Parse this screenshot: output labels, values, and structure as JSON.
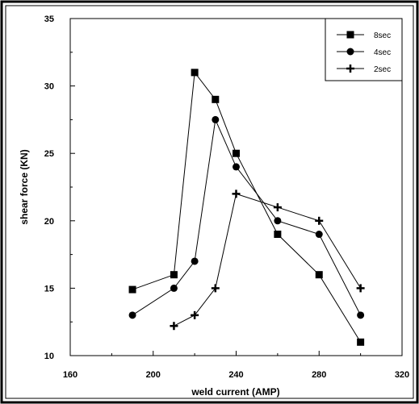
{
  "chart_data": {
    "type": "line",
    "title": "",
    "xlabel": "weld current (AMP)",
    "ylabel": "shear force (KN)",
    "xlim": [
      160,
      320
    ],
    "ylim": [
      10,
      35
    ],
    "xticks": [
      160,
      200,
      240,
      280,
      320
    ],
    "yticks": [
      10,
      15,
      20,
      25,
      30,
      35
    ],
    "grid": false,
    "legend_position": "top-right",
    "series": [
      {
        "name": "8sec",
        "marker": "square",
        "x": [
          190,
          210,
          220,
          230,
          240,
          260,
          280,
          300
        ],
        "y": [
          14.9,
          16,
          31,
          29,
          25,
          19,
          16,
          11
        ]
      },
      {
        "name": "4sec",
        "marker": "circle",
        "x": [
          190,
          210,
          220,
          230,
          240,
          260,
          280,
          300
        ],
        "y": [
          13,
          15,
          17,
          27.5,
          24,
          20,
          19,
          13
        ]
      },
      {
        "name": "2sec",
        "marker": "plus",
        "x": [
          210,
          220,
          230,
          240,
          260,
          280,
          300
        ],
        "y": [
          12.2,
          13,
          15,
          22,
          21,
          20,
          15
        ]
      }
    ]
  }
}
